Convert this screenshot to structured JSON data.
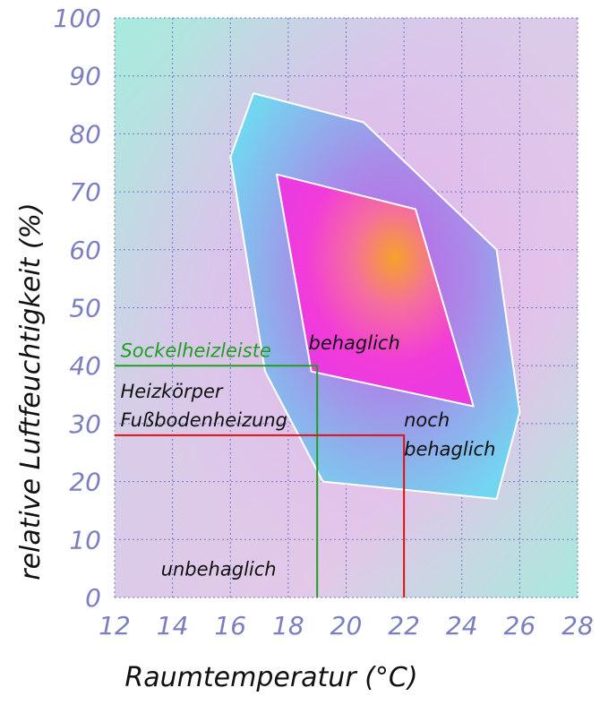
{
  "chart_data": {
    "type": "area",
    "title": "",
    "xlabel": "Raumtemperatur (°C)",
    "ylabel": "relative Luftfeuchtigkeit (%)",
    "xlim": [
      12,
      28
    ],
    "ylim": [
      0,
      100
    ],
    "xticks": [
      "12",
      "14",
      "16",
      "18",
      "20",
      "22",
      "24",
      "26",
      "28"
    ],
    "yticks": [
      "0",
      "10",
      "20",
      "30",
      "40",
      "50",
      "60",
      "70",
      "80",
      "90",
      "100"
    ],
    "grid": true,
    "regions": [
      {
        "name": "noch behaglich",
        "color": "#7fd4ef",
        "points": [
          [
            16.8,
            87
          ],
          [
            20.6,
            82
          ],
          [
            25.2,
            60
          ],
          [
            26.0,
            32
          ],
          [
            25.2,
            17
          ],
          [
            19.2,
            20
          ],
          [
            17.2,
            39
          ],
          [
            16.0,
            76
          ],
          [
            16.8,
            87
          ]
        ]
      },
      {
        "name": "behaglich",
        "color": "#f23cd8",
        "points": [
          [
            17.6,
            73
          ],
          [
            22.4,
            67
          ],
          [
            24.4,
            33
          ],
          [
            18.8,
            39
          ],
          [
            17.6,
            73
          ]
        ]
      }
    ],
    "reference_lines": [
      {
        "name": "Sockelheizleiste",
        "x": 19,
        "y": 40,
        "color": "#1ea01e"
      },
      {
        "name": "Heizkörper Fußbodenheizung",
        "x": 22,
        "y": 28,
        "color": "#e01010"
      }
    ],
    "annotations": [
      {
        "id": "sockel",
        "text": "Sockelheizleiste",
        "x": 12.2,
        "y": 41.5,
        "color": "#1ea01e"
      },
      {
        "id": "heizkoerper",
        "text": "Heizkörper",
        "x": 12.2,
        "y": 34.5,
        "color": "#111111"
      },
      {
        "id": "fussboden",
        "text": "Fußbodenheizung",
        "x": 12.2,
        "y": 29.5,
        "color": "#111111"
      },
      {
        "id": "behaglich",
        "text": "behaglich",
        "x": 18.7,
        "y": 42.8,
        "color": "#111111"
      },
      {
        "id": "noch",
        "text": "noch",
        "x": 22.0,
        "y": 29.5,
        "color": "#111111"
      },
      {
        "id": "behaglich2",
        "text": "behaglich",
        "x": 22.0,
        "y": 24.5,
        "color": "#111111"
      },
      {
        "id": "unbehaglich",
        "text": "unbehaglich",
        "x": 13.6,
        "y": 3.8,
        "color": "#111111"
      }
    ]
  }
}
